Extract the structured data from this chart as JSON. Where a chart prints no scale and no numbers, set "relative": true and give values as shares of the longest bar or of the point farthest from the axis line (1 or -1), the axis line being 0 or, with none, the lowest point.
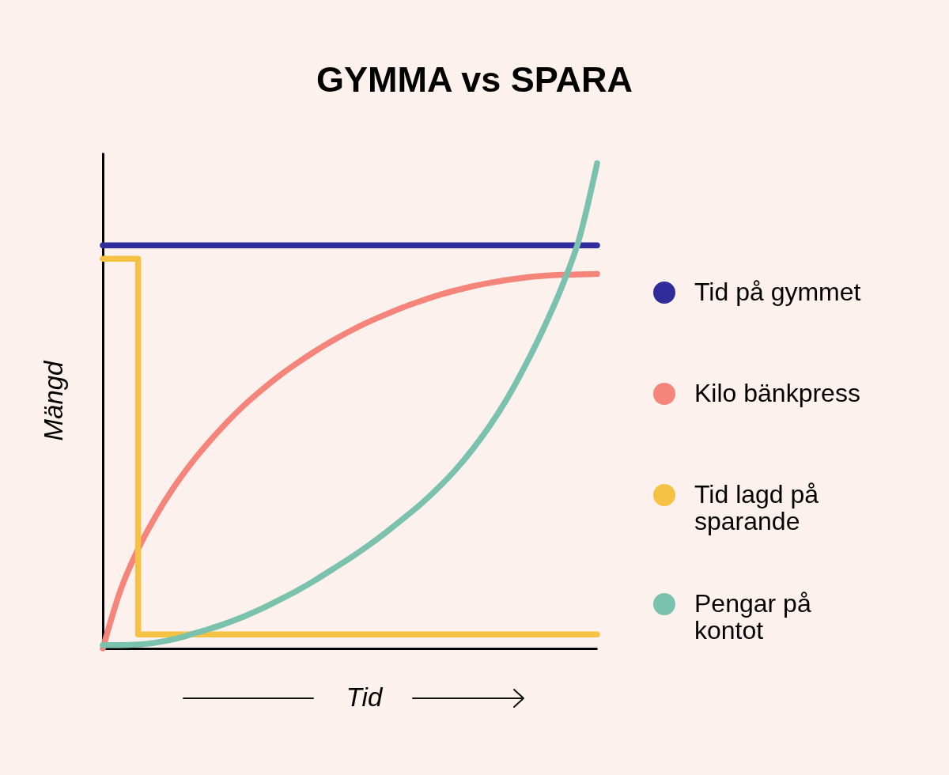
{
  "chart_data": {
    "type": "line",
    "title": "GYMMA vs SPARA",
    "xlabel": "Tid",
    "ylabel": "Mängd",
    "relative": true,
    "legend": "right",
    "line_style": "solid",
    "categories": [
      null,
      null,
      null,
      null,
      null,
      null,
      null,
      null,
      null,
      null,
      null,
      null,
      null,
      null,
      null,
      null,
      null,
      null,
      null,
      null,
      null,
      null,
      null,
      null,
      null,
      null,
      null,
      null,
      null
    ],
    "series": [
      {
        "name": "Tid på gymmet",
        "color": "#302c9b",
        "values": [
          0.831,
          0.831,
          0.831,
          0.831,
          0.831,
          0.831,
          0.831,
          0.831,
          0.831,
          0.831,
          0.831,
          0.831,
          0.831,
          0.831,
          0.831,
          0.831,
          0.831,
          0.831,
          0.831,
          0.831,
          0.831,
          0.831,
          0.831,
          0.831,
          0.831,
          0.831,
          0.831,
          0.831,
          0.831
        ]
      },
      {
        "name": "Kilo bänkpress",
        "color": "#f5857a",
        "values": [
          0,
          0.12,
          0.205,
          0.273,
          0.331,
          0.381,
          0.425,
          0.465,
          0.501,
          0.533,
          0.562,
          0.588,
          0.612,
          0.634,
          0.654,
          0.672,
          0.688,
          0.703,
          0.716,
          0.728,
          0.738,
          0.747,
          0.754,
          0.76,
          0.765,
          0.768,
          0.77,
          0.771,
          0.772
        ]
      },
      {
        "name": "Tid lagd på sparande",
        "color": "#f6c244",
        "type": "step",
        "values": [
          0.803,
          0.803,
          0.029,
          0.029,
          0.029,
          0.029,
          0.029,
          0.029,
          0.029,
          0.029,
          0.029,
          0.029,
          0.029,
          0.029,
          0.029,
          0.029,
          0.029,
          0.029,
          0.029,
          0.029,
          0.029,
          0.029,
          0.029,
          0.029,
          0.029,
          0.029,
          0.029,
          0.029,
          0.029
        ]
      },
      {
        "name": "Pengar på kontot",
        "color": "#7bc2ae",
        "values": [
          0.007,
          0.007,
          0.008,
          0.012,
          0.019,
          0.029,
          0.04,
          0.052,
          0.066,
          0.082,
          0.1,
          0.119,
          0.14,
          0.163,
          0.186,
          0.211,
          0.238,
          0.267,
          0.297,
          0.331,
          0.369,
          0.413,
          0.463,
          0.521,
          0.588,
          0.662,
          0.745,
          0.846,
          1.0
        ]
      }
    ]
  }
}
